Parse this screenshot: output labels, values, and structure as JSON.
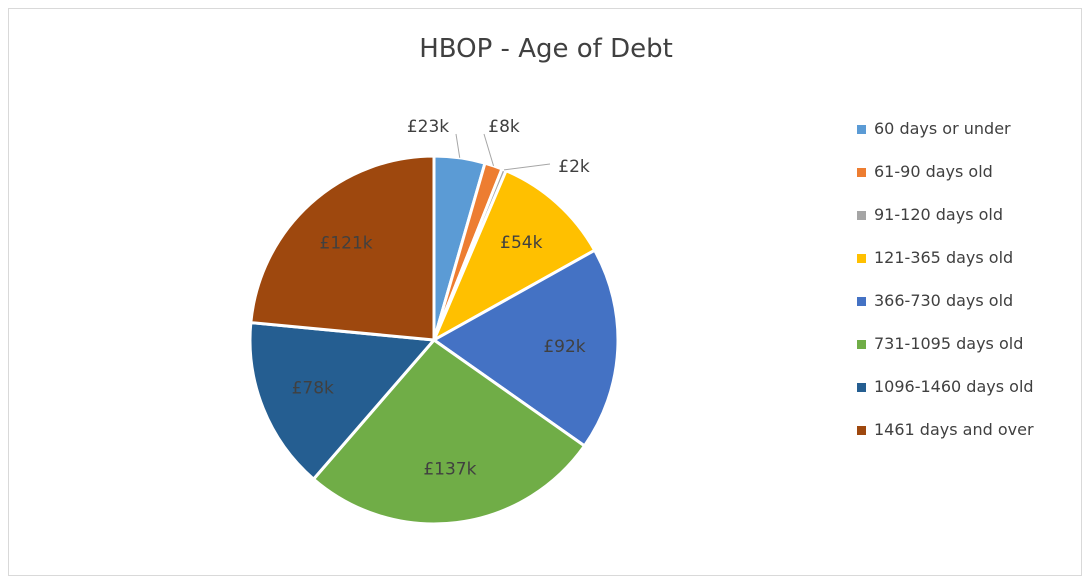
{
  "chart_data": {
    "type": "pie",
    "title": "HBOP - Age of Debt",
    "categories": [
      "60 days or under",
      "61-90 days old",
      "91-120 days old",
      "121-365 days old",
      "366-730 days old",
      "731-1095 days old",
      "1096-1460 days old",
      "1461 days and over"
    ],
    "values": [
      23,
      8,
      2,
      54,
      92,
      137,
      78,
      121
    ],
    "value_labels": [
      "£23k",
      "£8k",
      "£2k",
      "£54k",
      "£92k",
      "£137k",
      "£78k",
      "£121k"
    ],
    "colors": [
      "#5b9bd5",
      "#ed7d31",
      "#a5a5a5",
      "#ffc000",
      "#4472c4",
      "#70ad47",
      "#255e91",
      "#9e480e"
    ],
    "legend_position": "right"
  }
}
